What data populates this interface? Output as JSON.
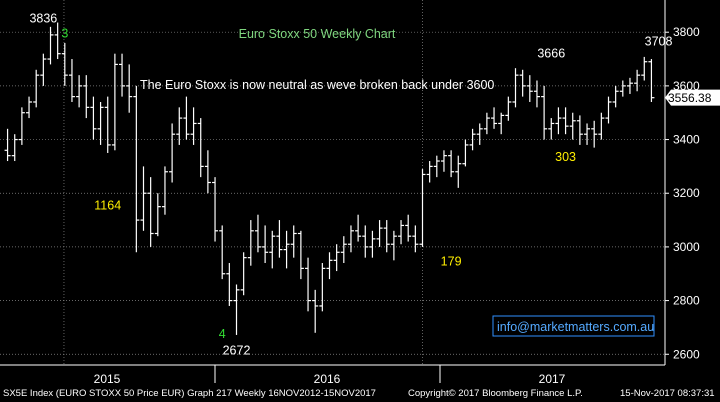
{
  "chart_data": {
    "type": "bar",
    "subtype": "ohlc-weekly",
    "title": "Euro Stoxx 50 Weekly Chart",
    "subtitle": "The Euro Stoxx is now neutral as weve broken back under 3600",
    "watermark": "info@marketmatters.com.au",
    "y_ticks": [
      2600,
      2800,
      3000,
      3200,
      3400,
      3600,
      3800
    ],
    "ylim": [
      2560,
      3920
    ],
    "x_ticks": [
      "2015",
      "2016",
      "2017"
    ],
    "last_price": "3556.38",
    "annotations": [
      {
        "text": "3836",
        "x": 5,
        "y": 3836,
        "color": "#ffffff"
      },
      {
        "text": "3",
        "x": 8,
        "y": 3780,
        "color": "#33dd33"
      },
      {
        "text": "1164",
        "x": 14,
        "y": 3140,
        "color": "#ffee00"
      },
      {
        "text": "4",
        "x": 30,
        "y": 2660,
        "color": "#33dd33"
      },
      {
        "text": "2672",
        "x": 32,
        "y": 2600,
        "color": "#ffffff"
      },
      {
        "text": "179",
        "x": 62,
        "y": 2930,
        "color": "#ffee00"
      },
      {
        "text": "3666",
        "x": 76,
        "y": 3705,
        "color": "#ffffff"
      },
      {
        "text": "303",
        "x": 78,
        "y": 3320,
        "color": "#ffee00"
      },
      {
        "text": "3708",
        "x": 91,
        "y": 3750,
        "color": "#ffffff"
      }
    ],
    "series": [
      {
        "values": [
          [
            3360,
            3440,
            3320,
            3340
          ],
          [
            3340,
            3420,
            3320,
            3400
          ],
          [
            3400,
            3520,
            3380,
            3500
          ],
          [
            3500,
            3560,
            3480,
            3540
          ],
          [
            3540,
            3660,
            3520,
            3640
          ],
          [
            3640,
            3720,
            3600,
            3700
          ],
          [
            3700,
            3820,
            3680,
            3790
          ],
          [
            3790,
            3836,
            3700,
            3720
          ],
          [
            3720,
            3760,
            3600,
            3640
          ],
          [
            3640,
            3700,
            3540,
            3560
          ],
          [
            3560,
            3640,
            3520,
            3600
          ],
          [
            3600,
            3640,
            3480,
            3520
          ],
          [
            3520,
            3560,
            3400,
            3440
          ],
          [
            3440,
            3540,
            3380,
            3520
          ],
          [
            3520,
            3560,
            3350,
            3380
          ],
          [
            3380,
            3720,
            3360,
            3680
          ],
          [
            3680,
            3720,
            3560,
            3600
          ],
          [
            3600,
            3680,
            3500,
            3560
          ],
          [
            3560,
            3600,
            2980,
            3100
          ],
          [
            3100,
            3300,
            3060,
            3200
          ],
          [
            3200,
            3260,
            3000,
            3050
          ],
          [
            3050,
            3200,
            3040,
            3150
          ],
          [
            3150,
            3300,
            3120,
            3280
          ],
          [
            3280,
            3460,
            3240,
            3420
          ],
          [
            3420,
            3520,
            3380,
            3480
          ],
          [
            3480,
            3560,
            3400,
            3420
          ],
          [
            3420,
            3520,
            3380,
            3460
          ],
          [
            3460,
            3480,
            3260,
            3300
          ],
          [
            3300,
            3360,
            3200,
            3240
          ],
          [
            3240,
            3260,
            3020,
            3060
          ],
          [
            3060,
            3080,
            2880,
            2900
          ],
          [
            2900,
            2940,
            2780,
            2800
          ],
          [
            2800,
            2860,
            2672,
            2840
          ],
          [
            2840,
            2980,
            2820,
            2960
          ],
          [
            2960,
            3100,
            2930,
            3060
          ],
          [
            3060,
            3120,
            2980,
            3000
          ],
          [
            3000,
            3080,
            2940,
            2980
          ],
          [
            2980,
            3060,
            2920,
            3040
          ],
          [
            3040,
            3100,
            2960,
            2990
          ],
          [
            2990,
            3060,
            2920,
            3010
          ],
          [
            3010,
            3080,
            2960,
            3050
          ],
          [
            3050,
            3060,
            2880,
            2920
          ],
          [
            2920,
            2960,
            2760,
            2800
          ],
          [
            2800,
            2840,
            2680,
            2780
          ],
          [
            2780,
            2940,
            2760,
            2920
          ],
          [
            2920,
            2980,
            2880,
            2950
          ],
          [
            2950,
            3010,
            2910,
            2980
          ],
          [
            2980,
            3040,
            2940,
            3010
          ],
          [
            3010,
            3080,
            2980,
            3060
          ],
          [
            3060,
            3120,
            3020,
            3040
          ],
          [
            3040,
            3080,
            2960,
            3000
          ],
          [
            3000,
            3060,
            2960,
            3030
          ],
          [
            3030,
            3100,
            3000,
            3070
          ],
          [
            3070,
            3100,
            2980,
            3010
          ],
          [
            3010,
            3060,
            2950,
            3040
          ],
          [
            3040,
            3100,
            3010,
            3080
          ],
          [
            3080,
            3120,
            3020,
            3040
          ],
          [
            3040,
            3080,
            2980,
            3010
          ],
          [
            3010,
            3290,
            3000,
            3270
          ],
          [
            3270,
            3320,
            3240,
            3300
          ],
          [
            3300,
            3340,
            3260,
            3320
          ],
          [
            3320,
            3360,
            3280,
            3340
          ],
          [
            3340,
            3360,
            3260,
            3280
          ],
          [
            3280,
            3340,
            3220,
            3310
          ],
          [
            3310,
            3400,
            3300,
            3380
          ],
          [
            3380,
            3440,
            3360,
            3420
          ],
          [
            3420,
            3460,
            3380,
            3440
          ],
          [
            3440,
            3500,
            3420,
            3480
          ],
          [
            3480,
            3520,
            3440,
            3460
          ],
          [
            3460,
            3500,
            3420,
            3490
          ],
          [
            3490,
            3560,
            3470,
            3540
          ],
          [
            3540,
            3666,
            3520,
            3640
          ],
          [
            3640,
            3660,
            3560,
            3600
          ],
          [
            3600,
            3640,
            3540,
            3580
          ],
          [
            3580,
            3620,
            3520,
            3560
          ],
          [
            3560,
            3600,
            3400,
            3440
          ],
          [
            3440,
            3480,
            3400,
            3460
          ],
          [
            3460,
            3520,
            3420,
            3480
          ],
          [
            3480,
            3520,
            3420,
            3450
          ],
          [
            3450,
            3500,
            3400,
            3470
          ],
          [
            3470,
            3490,
            3380,
            3420
          ],
          [
            3420,
            3460,
            3380,
            3440
          ],
          [
            3440,
            3470,
            3370,
            3420
          ],
          [
            3420,
            3500,
            3400,
            3480
          ],
          [
            3480,
            3560,
            3460,
            3540
          ],
          [
            3540,
            3600,
            3520,
            3580
          ],
          [
            3580,
            3620,
            3560,
            3600
          ],
          [
            3600,
            3630,
            3570,
            3610
          ],
          [
            3610,
            3660,
            3580,
            3640
          ],
          [
            3640,
            3708,
            3620,
            3690
          ],
          [
            3690,
            3700,
            3540,
            3556
          ]
        ]
      }
    ],
    "grid": true,
    "footer": {
      "left": "SX5E Index (EURO STOXX 50 Price EUR) Graph 217  Weekly 16NOV2012-15NOV2017",
      "mid": "Copyright© 2017 Bloomberg Finance L.P.",
      "right": "15-Nov-2017 08:37:31"
    }
  }
}
